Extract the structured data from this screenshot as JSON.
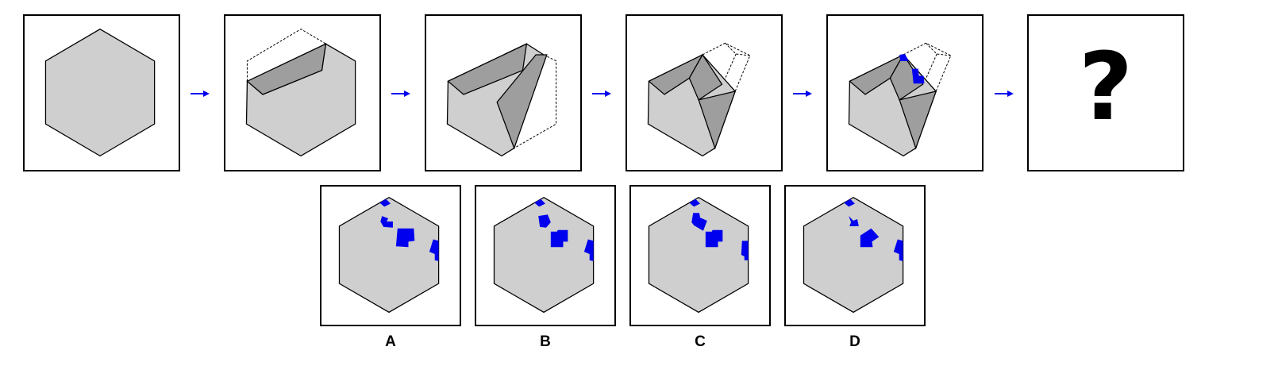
{
  "puzzle": {
    "sequence_count": 5,
    "question_mark": "?",
    "colors": {
      "paper": "#cfcfcf",
      "fold": "#9e9e9e",
      "hole": "#0000ee",
      "arrow": "#0000ee",
      "outline": "#000000"
    }
  },
  "options": [
    {
      "label": "A"
    },
    {
      "label": "B"
    },
    {
      "label": "C"
    },
    {
      "label": "D"
    }
  ]
}
